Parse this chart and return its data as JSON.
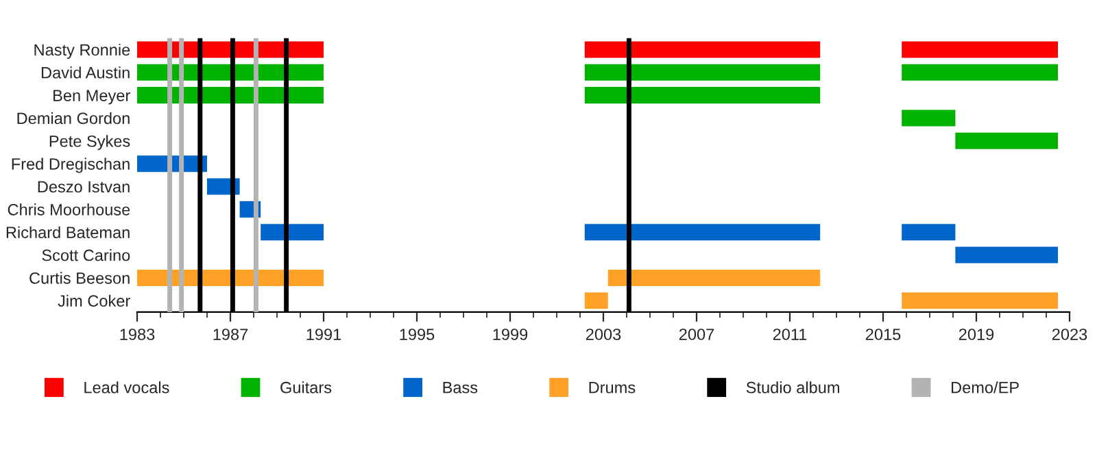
{
  "chart_data": {
    "type": "bar",
    "orientation": "horizontal",
    "categories": [
      "Nasty Ronnie",
      "David Austin",
      "Ben Meyer",
      "Demian Gordon",
      "Pete Sykes",
      "Fred Dregischan",
      "Deszo Istvan",
      "Chris Moorhouse",
      "Richard Bateman",
      "Scott Carino",
      "Curtis Beeson",
      "Jim Coker"
    ],
    "series": [
      {
        "name": "Lead vocals",
        "color": "#ff0000",
        "values": [
          8,
          null,
          null,
          null,
          null,
          null,
          null,
          null,
          null,
          null,
          null,
          null
        ],
        "base": [
          1983,
          null,
          null,
          null,
          null,
          null,
          null,
          null,
          null,
          null,
          null,
          null
        ]
      },
      {
        "name": "Guitars",
        "color": "#00b300",
        "values": [
          null,
          8,
          8,
          null,
          null,
          null,
          null,
          null,
          null,
          null,
          null,
          null
        ],
        "base": [
          null,
          1983,
          1983,
          null,
          null,
          null,
          null,
          null,
          null,
          null,
          null,
          null
        ]
      },
      {
        "name": "Bass",
        "color": "#0066cc",
        "values": [
          null,
          null,
          null,
          null,
          null,
          3,
          1.4,
          0.9,
          2.7,
          null,
          null,
          null
        ],
        "base": [
          null,
          null,
          null,
          null,
          null,
          1983,
          1986.0,
          1987.4,
          1988.3,
          null,
          null,
          null
        ]
      },
      {
        "name": "Drums",
        "color": "#ffa126",
        "values": [
          null,
          null,
          null,
          null,
          null,
          null,
          null,
          null,
          null,
          null,
          8,
          null
        ],
        "base": [
          null,
          null,
          null,
          null,
          null,
          null,
          null,
          null,
          null,
          null,
          1983,
          null
        ]
      },
      {
        "color": "#ff0000",
        "values": [
          10.1,
          null,
          null,
          null,
          null,
          null,
          null,
          null,
          null,
          null,
          null,
          null
        ],
        "base": [
          2002.2,
          null,
          null,
          null,
          null,
          null,
          null,
          null,
          null,
          null,
          null,
          null
        ]
      },
      {
        "color": "#00b300",
        "values": [
          null,
          10.1,
          10.1,
          null,
          null,
          null,
          null,
          null,
          null,
          null,
          null,
          null
        ],
        "base": [
          null,
          2002.2,
          2002.2,
          null,
          null,
          null,
          null,
          null,
          null,
          null,
          null,
          null
        ]
      },
      {
        "color": "#0066cc",
        "values": [
          null,
          null,
          null,
          null,
          null,
          null,
          null,
          null,
          10.1,
          null,
          null,
          null
        ],
        "base": [
          null,
          null,
          null,
          null,
          null,
          null,
          null,
          null,
          2002.2,
          null,
          null,
          null
        ]
      },
      {
        "color": "#ffa126",
        "values": [
          null,
          null,
          null,
          null,
          null,
          null,
          null,
          null,
          null,
          null,
          9.1,
          1.0
        ],
        "base": [
          null,
          null,
          null,
          null,
          null,
          null,
          null,
          null,
          null,
          null,
          2003.2,
          2002.2
        ]
      },
      {
        "color": "#ff0000",
        "values": [
          6.7,
          null,
          null,
          null,
          null,
          null,
          null,
          null,
          null,
          null,
          null,
          null
        ],
        "base": [
          2015.8,
          null,
          null,
          null,
          null,
          null,
          null,
          null,
          null,
          null,
          null,
          null
        ]
      },
      {
        "color": "#00b300",
        "values": [
          null,
          6.7,
          null,
          2.3,
          4.4,
          null,
          null,
          null,
          null,
          null,
          null,
          null
        ],
        "base": [
          null,
          2015.8,
          null,
          2015.8,
          2018.1,
          null,
          null,
          null,
          null,
          null,
          null,
          null
        ]
      },
      {
        "color": "#0066cc",
        "values": [
          null,
          null,
          null,
          null,
          null,
          null,
          null,
          null,
          2.3,
          4.4,
          null,
          null
        ],
        "base": [
          null,
          null,
          null,
          null,
          null,
          null,
          null,
          null,
          2015.8,
          2018.1,
          null,
          null
        ]
      },
      {
        "color": "#ffa126",
        "values": [
          null,
          null,
          null,
          null,
          null,
          null,
          null,
          null,
          null,
          null,
          null,
          6.7
        ],
        "base": [
          null,
          null,
          null,
          null,
          null,
          null,
          null,
          null,
          null,
          null,
          null,
          2015.8
        ]
      }
    ],
    "ref_lines": [
      {
        "axis": "x",
        "value": 1984.4,
        "color": "#b3b3b3",
        "label": "Demo/EP"
      },
      {
        "axis": "x",
        "value": 1984.9,
        "color": "#b3b3b3"
      },
      {
        "axis": "x",
        "value": 1985.7,
        "color": "#000000",
        "label": "Studio album"
      },
      {
        "axis": "x",
        "value": 1987.1,
        "color": "#000000"
      },
      {
        "axis": "x",
        "value": 1988.1,
        "color": "#b3b3b3"
      },
      {
        "axis": "x",
        "value": 1989.4,
        "color": "#000000"
      },
      {
        "axis": "x",
        "value": 2004.1,
        "color": "#000000"
      }
    ],
    "xlim": [
      1983,
      2023
    ],
    "xticks": [
      1983,
      1987,
      1991,
      1995,
      1999,
      2003,
      2007,
      2011,
      2015,
      2019,
      2023
    ],
    "grid": false,
    "legend": "bottom"
  }
}
